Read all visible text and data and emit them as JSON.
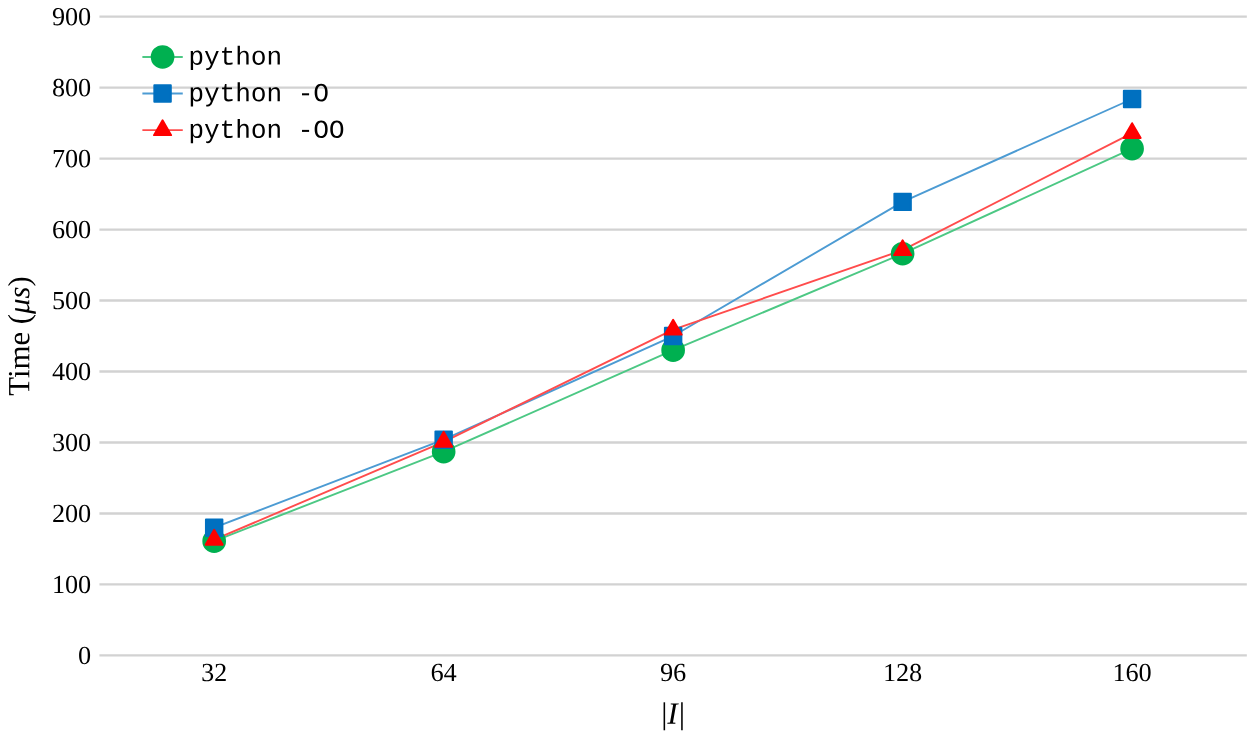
{
  "chart_data": {
    "type": "line",
    "xlabel": "|*I*|",
    "ylabel": "Time (*μs*)",
    "categories": [
      "32",
      "64",
      "96",
      "128",
      "160"
    ],
    "series": [
      {
        "name": "python",
        "color": "#00b050",
        "marker": "circle",
        "values": [
          161,
          287,
          430,
          566,
          714
        ]
      },
      {
        "name": "python -O",
        "color": "#0070c0",
        "marker": "square",
        "values": [
          180,
          304,
          450,
          639,
          784
        ]
      },
      {
        "name": "python -OO",
        "color": "#ff0000",
        "marker": "triangle",
        "values": [
          163,
          301,
          459,
          571,
          736
        ]
      }
    ],
    "ylim": [
      0,
      900
    ],
    "yticks": [
      0,
      100,
      200,
      300,
      400,
      500,
      600,
      700,
      800,
      900
    ],
    "grid": "y",
    "legend": "top left"
  }
}
